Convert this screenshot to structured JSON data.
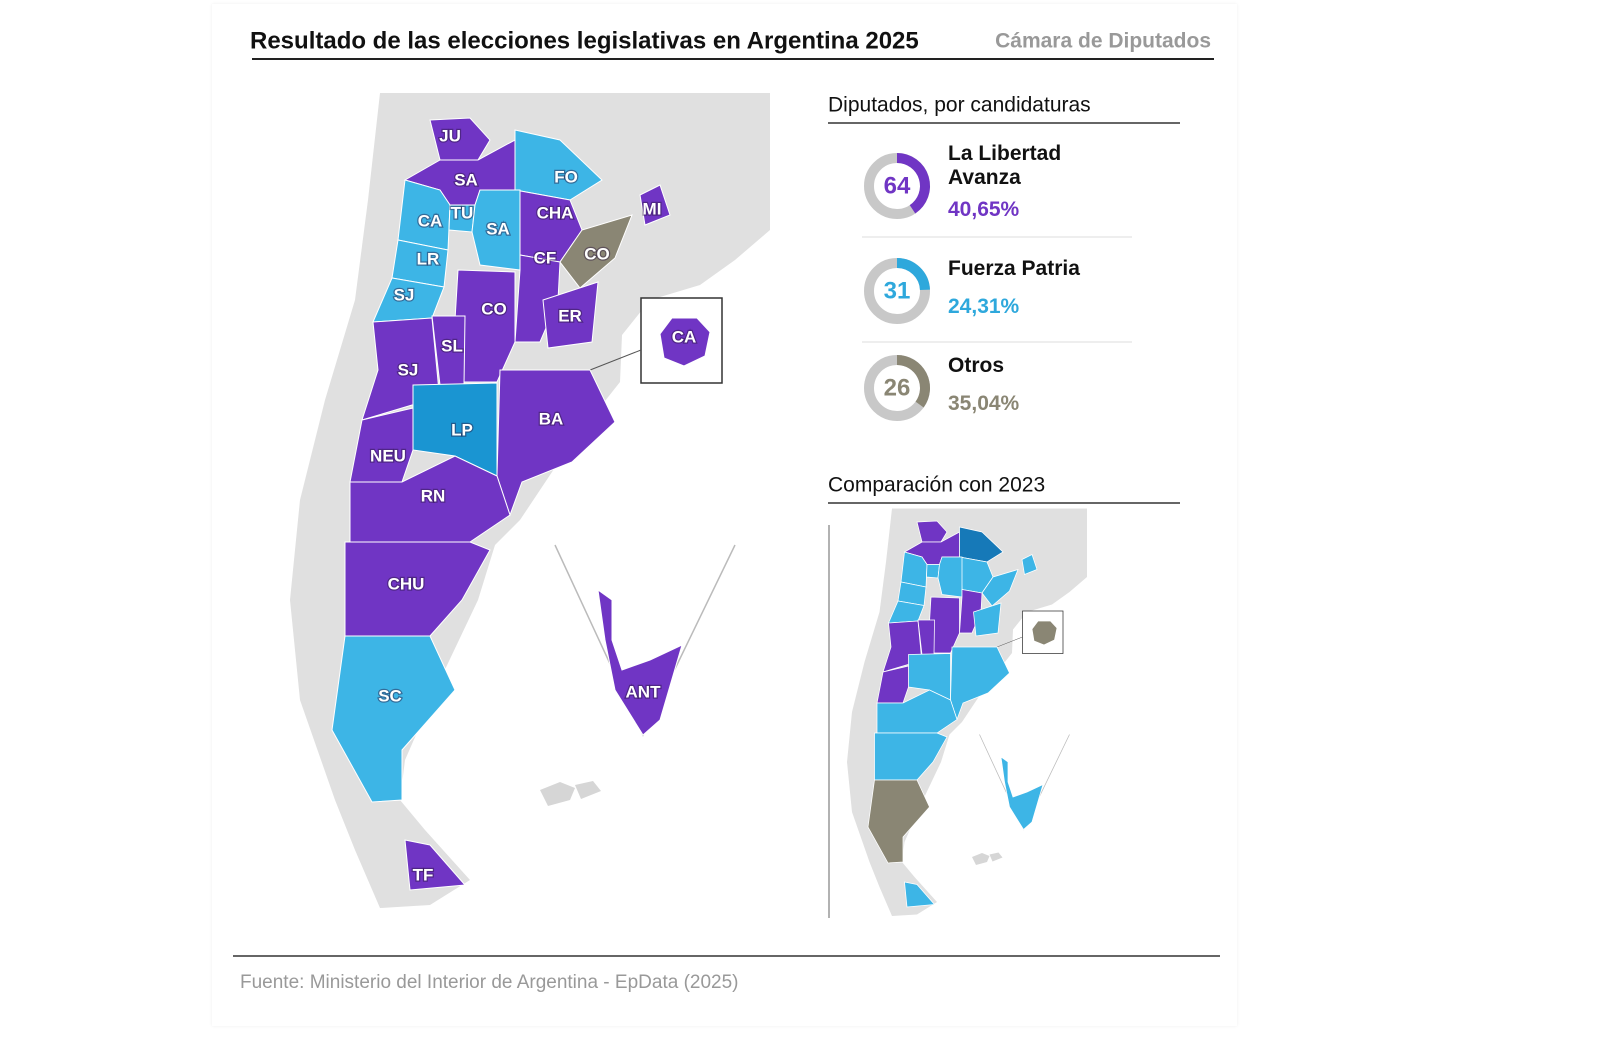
{
  "header": {
    "title": "Resultado de las elecciones legislativas en Argentina 2025",
    "subtitle": "Cámara de Diputados"
  },
  "candidaturas": {
    "title": "Diputados, por candidaturas",
    "parties": [
      {
        "name": "La Libertad Avanza",
        "seats": 64,
        "percent": 40.65,
        "percent_label": "40,65%",
        "color": "#7035c4"
      },
      {
        "name": "Fuerza Patria",
        "seats": 31,
        "percent": 24.31,
        "percent_label": "24,31%",
        "color": "#2ea8dc"
      },
      {
        "name": "Otros",
        "seats": 26,
        "percent": 35.04,
        "percent_label": "35,04%",
        "color": "#8a8674"
      }
    ]
  },
  "comparison": {
    "title": "Comparación con 2023"
  },
  "provinces": [
    {
      "label": "JU",
      "color": "#7035c4",
      "color_2023": "#7035c4"
    },
    {
      "label": "SA",
      "color": "#7035c4",
      "color_2023": "#7035c4"
    },
    {
      "label": "FO",
      "color": "#3db5e6",
      "color_2023": "#1679b8"
    },
    {
      "label": "MI",
      "color": "#7035c4",
      "color_2023": "#3db5e6"
    },
    {
      "label": "CHA",
      "color": "#7035c4",
      "color_2023": "#3db5e6"
    },
    {
      "label": "CO",
      "color": "#8a8674",
      "color_2023": "#3db5e6"
    },
    {
      "label": "CA",
      "color": "#3db5e6",
      "color_2023": "#3db5e6"
    },
    {
      "label": "TU",
      "color": "#3db5e6",
      "color_2023": "#3db5e6"
    },
    {
      "label": "SA",
      "color": "#3db5e6",
      "color_2023": "#3db5e6"
    },
    {
      "label": "LR",
      "color": "#3db5e6",
      "color_2023": "#3db5e6"
    },
    {
      "label": "SJ",
      "color": "#3db5e6",
      "color_2023": "#3db5e6"
    },
    {
      "label": "CF",
      "color": "#7035c4",
      "color_2023": "#7035c4"
    },
    {
      "label": "CO",
      "color": "#7035c4",
      "color_2023": "#7035c4"
    },
    {
      "label": "ER",
      "color": "#7035c4",
      "color_2023": "#3db5e6"
    },
    {
      "label": "SJ",
      "color": "#7035c4",
      "color_2023": "#7035c4"
    },
    {
      "label": "SL",
      "color": "#7035c4",
      "color_2023": "#7035c4"
    },
    {
      "label": "LP",
      "color": "#1a95d2",
      "color_2023": "#3db5e6"
    },
    {
      "label": "BA",
      "color": "#7035c4",
      "color_2023": "#3db5e6"
    },
    {
      "label": "NEU",
      "color": "#7035c4",
      "color_2023": "#7035c4"
    },
    {
      "label": "RN",
      "color": "#7035c4",
      "color_2023": "#3db5e6"
    },
    {
      "label": "CHU",
      "color": "#7035c4",
      "color_2023": "#3db5e6"
    },
    {
      "label": "SC",
      "color": "#3db5e6",
      "color_2023": "#8a8674"
    },
    {
      "label": "TF",
      "color": "#7035c4",
      "color_2023": "#3db5e6"
    },
    {
      "label": "CA",
      "color": "#7035c4",
      "color_2023": "#8a8674"
    },
    {
      "label": "ANT",
      "color": "#7035c4",
      "color_2023": "#3db5e6"
    }
  ],
  "footer": {
    "source": "Fuente: Ministerio del Interior de Argentina - EpData (2025)"
  }
}
